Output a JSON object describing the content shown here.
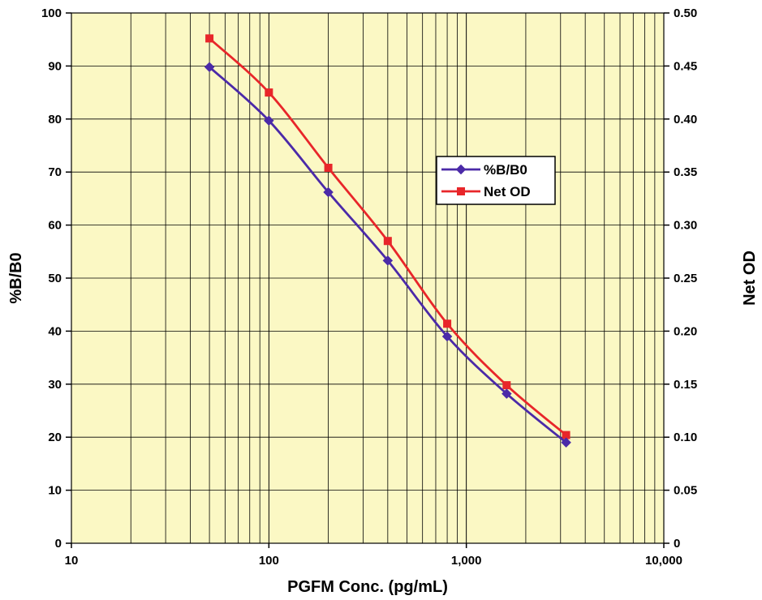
{
  "chart_data": {
    "type": "line",
    "x_scale": "log",
    "x": [
      50,
      100,
      200,
      400,
      800,
      1600,
      3200
    ],
    "xlabel": "PGFM Conc. (pg/mL)",
    "xlim": [
      10,
      10000
    ],
    "x_ticks": [
      "10",
      "100",
      "1,000",
      "10,000"
    ],
    "ylabel": "%B/B0",
    "ylim": [
      0,
      100
    ],
    "y_ticks": [
      "0",
      "10",
      "20",
      "30",
      "40",
      "50",
      "60",
      "70",
      "80",
      "90",
      "100"
    ],
    "y2label": "Net OD",
    "y2lim": [
      0,
      0.5
    ],
    "y2_ticks": [
      "0",
      "0.05",
      "0.10",
      "0.15",
      "0.20",
      "0.25",
      "0.30",
      "0.35",
      "0.40",
      "0.45",
      "0.50"
    ],
    "grid": true,
    "legend_position": "center-right",
    "series": [
      {
        "name": "%B/B0",
        "axis": "left",
        "color": "#4b2aa8",
        "marker": "diamond",
        "values": [
          89.8,
          79.7,
          66.2,
          53.3,
          39.0,
          28.2,
          19.0
        ]
      },
      {
        "name": "Net OD",
        "axis": "right",
        "color": "#e8262a",
        "marker": "square",
        "values": [
          0.476,
          0.425,
          0.354,
          0.285,
          0.207,
          0.149,
          0.102
        ]
      }
    ]
  },
  "colors": {
    "plot_background": "#fbf8c4",
    "grid": "#000000"
  }
}
